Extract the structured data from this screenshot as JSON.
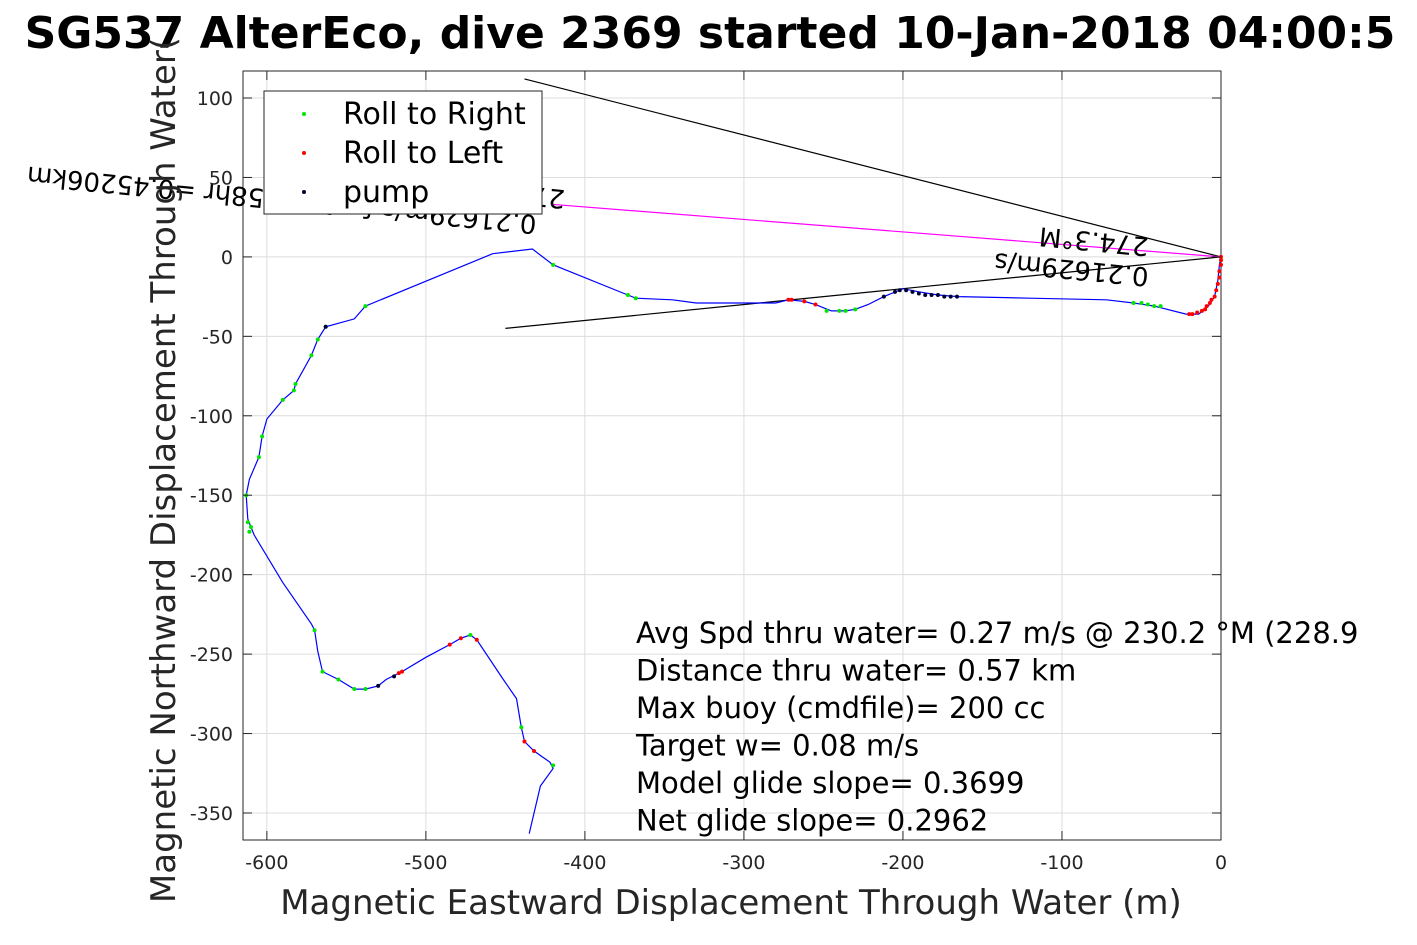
{
  "chart_data": {
    "type": "line",
    "title": "SG537 AlterEco, dive 2369 started 10-Jan-2018 04:00:5",
    "xlabel": "Magnetic Eastward Displacement Through Water (m)",
    "ylabel": "Magnetic Northward Displacement Through Water(",
    "xlim": [
      -615,
      0
    ],
    "ylim": [
      -367,
      117
    ],
    "xticks": [
      -600,
      -500,
      -400,
      -300,
      -200,
      -100,
      0
    ],
    "yticks": [
      100,
      50,
      0,
      -50,
      -100,
      -150,
      -200,
      -250,
      -300,
      -350
    ],
    "xtick_labels": [
      "-600",
      "-500",
      "-400",
      "-300",
      "-200",
      "-100",
      "0"
    ],
    "ytick_labels": [
      "100",
      "50",
      "0",
      "-50",
      "-100",
      "-150",
      "-200",
      "-250",
      "-300",
      "-350"
    ],
    "grid": true,
    "legend_position": "top-left",
    "legend": [
      {
        "label": "Roll to Right",
        "color": "#00e600"
      },
      {
        "label": "Roll to Left",
        "color": "#ff0000"
      },
      {
        "label": "pump",
        "color": "#000033"
      }
    ],
    "track_color": "#0000ff",
    "track": [
      [
        -435,
        -363
      ],
      [
        -428,
        -333
      ],
      [
        -420,
        -322
      ],
      [
        -422,
        -318
      ],
      [
        -432,
        -311
      ],
      [
        -438,
        -305
      ],
      [
        -440,
        -296
      ],
      [
        -443,
        -278
      ],
      [
        -452,
        -265
      ],
      [
        -468,
        -241
      ],
      [
        -472,
        -238
      ],
      [
        -478,
        -240
      ],
      [
        -485,
        -244
      ],
      [
        -500,
        -252
      ],
      [
        -515,
        -261
      ],
      [
        -525,
        -266
      ],
      [
        -530,
        -270
      ],
      [
        -538,
        -272
      ],
      [
        -545,
        -272
      ],
      [
        -555,
        -266
      ],
      [
        -565,
        -261
      ],
      [
        -568,
        -248
      ],
      [
        -570,
        -235
      ],
      [
        -572,
        -231
      ],
      [
        -590,
        -205
      ],
      [
        -608,
        -175
      ],
      [
        -612,
        -165
      ],
      [
        -613,
        -150
      ],
      [
        -611,
        -140
      ],
      [
        -605,
        -126
      ],
      [
        -603,
        -113
      ],
      [
        -600,
        -102
      ],
      [
        -590,
        -90
      ],
      [
        -583,
        -84
      ],
      [
        -582,
        -80
      ],
      [
        -572,
        -62
      ],
      [
        -568,
        -52
      ],
      [
        -563,
        -44
      ],
      [
        -545,
        -39
      ],
      [
        -538,
        -31
      ],
      [
        -458,
        2
      ],
      [
        -433,
        5
      ],
      [
        -420,
        -5
      ],
      [
        -373,
        -24
      ],
      [
        -368,
        -26
      ],
      [
        -345,
        -27
      ],
      [
        -330,
        -29
      ],
      [
        -310,
        -29
      ],
      [
        -300,
        -29
      ],
      [
        -280,
        -29
      ],
      [
        -272,
        -27
      ],
      [
        -262,
        -28
      ],
      [
        -255,
        -30
      ],
      [
        -245,
        -34
      ],
      [
        -236,
        -34
      ],
      [
        -230,
        -33
      ],
      [
        -222,
        -30
      ],
      [
        -212,
        -25
      ],
      [
        -200,
        -20
      ],
      [
        -190,
        -22
      ],
      [
        -178,
        -24
      ],
      [
        -165,
        -25
      ],
      [
        -120,
        -26
      ],
      [
        -72,
        -27
      ],
      [
        -55,
        -29
      ],
      [
        -42,
        -31
      ],
      [
        -22,
        -36
      ],
      [
        -14,
        -36
      ],
      [
        -8,
        -31
      ],
      [
        -4,
        -25
      ],
      [
        -2,
        -15
      ],
      [
        -1,
        -5
      ],
      [
        0,
        0
      ]
    ],
    "roll_right": [
      [
        -420,
        -320
      ],
      [
        -440,
        -296
      ],
      [
        -472,
        -238
      ],
      [
        -570,
        -235
      ],
      [
        -565,
        -261
      ],
      [
        -538,
        -272
      ],
      [
        -545,
        -272
      ],
      [
        -555,
        -266
      ],
      [
        -610,
        -170
      ],
      [
        -611,
        -173
      ],
      [
        -612,
        -167
      ],
      [
        -613,
        -150
      ],
      [
        -605,
        -126
      ],
      [
        -603,
        -113
      ],
      [
        -590,
        -90
      ],
      [
        -583,
        -84
      ],
      [
        -582,
        -80
      ],
      [
        -572,
        -62
      ],
      [
        -568,
        -52
      ],
      [
        -563,
        -44
      ],
      [
        -538,
        -31
      ],
      [
        -420,
        -5
      ],
      [
        -373,
        -24
      ],
      [
        -368,
        -26
      ],
      [
        -248,
        -34
      ],
      [
        -240,
        -34
      ],
      [
        -236,
        -34
      ],
      [
        -230,
        -33
      ],
      [
        -55,
        -29
      ],
      [
        -50,
        -29
      ],
      [
        -46,
        -30
      ],
      [
        -42,
        -31
      ],
      [
        -38,
        -31
      ]
    ],
    "roll_left": [
      [
        -432,
        -311
      ],
      [
        -438,
        -305
      ],
      [
        -468,
        -241
      ],
      [
        -478,
        -240
      ],
      [
        -485,
        -244
      ],
      [
        -515,
        -261
      ],
      [
        -517,
        -262
      ],
      [
        -270,
        -27
      ],
      [
        -272,
        -27
      ],
      [
        -262,
        -28
      ],
      [
        -255,
        -30
      ],
      [
        -20,
        -36
      ],
      [
        -18,
        -36
      ],
      [
        -15,
        -35
      ],
      [
        -12,
        -34
      ],
      [
        -10,
        -33
      ],
      [
        -9,
        -31
      ],
      [
        -7,
        -29
      ],
      [
        -6,
        -27
      ],
      [
        -4,
        -25
      ],
      [
        -3,
        -21
      ],
      [
        -2,
        -17
      ],
      [
        -1,
        -13
      ],
      [
        -1,
        -9
      ],
      [
        0,
        -5
      ],
      [
        0,
        -2
      ],
      [
        0,
        0
      ]
    ],
    "pump": [
      [
        -530,
        -270
      ],
      [
        -520,
        -264
      ],
      [
        -563,
        -44
      ],
      [
        -212,
        -25
      ],
      [
        -205,
        -22
      ],
      [
        -202,
        -21
      ],
      [
        -198,
        -21
      ],
      [
        -194,
        -22
      ],
      [
        -190,
        -23
      ],
      [
        -186,
        -24
      ],
      [
        -182,
        -24
      ],
      [
        -178,
        -24
      ],
      [
        -174,
        -25
      ],
      [
        -170,
        -25
      ],
      [
        -166,
        -25
      ]
    ],
    "reference_lines": [
      {
        "from": [
          -438,
          112
        ],
        "to": [
          0,
          0
        ],
        "color": "#000000"
      },
      {
        "from": [
          -450,
          -45
        ],
        "to": [
          0,
          0
        ],
        "color": "#000000"
      },
      {
        "from": [
          -420,
          33
        ],
        "to": [
          0,
          0
        ],
        "color": "#ff00ff"
      }
    ],
    "rotated_labels": [
      {
        "text": "274.3°M",
        "x": -412,
        "y": 42
      },
      {
        "text": "0.21629m/s for0.58058hr =0.45206km",
        "x": -430,
        "y": 26
      },
      {
        "text": "274.3°M",
        "x": -45,
        "y": 12
      },
      {
        "text": "0.21629m/s",
        "x": -45,
        "y": -7
      }
    ],
    "annotations": [
      "Avg Spd thru water=  0.27 m/s @ 230.2 °M (228.9",
      "Distance thru water=  0.57 km",
      "Max buoy (cmdfile)= 200 cc",
      "Target w= 0.08 m/s",
      "Model glide slope= 0.3699",
      "Net glide slope= 0.2962"
    ]
  }
}
